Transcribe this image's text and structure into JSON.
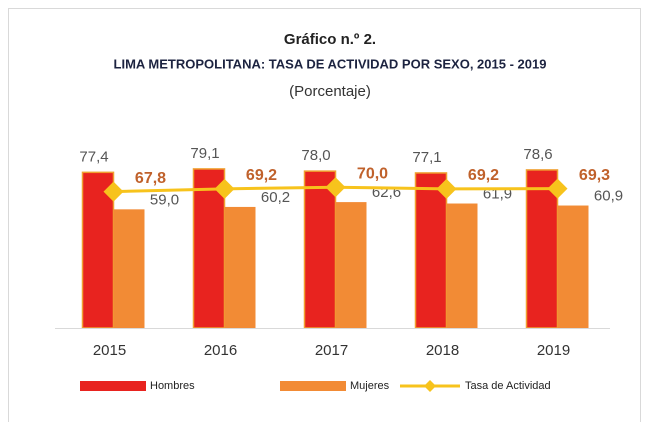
{
  "chart_data": {
    "type": "bar",
    "title": "Gráfico n.º 2.",
    "subtitle": "LIMA METROPOLITANA: TASA DE ACTIVIDAD POR SEXO, 2015 - 2019",
    "unit_note": "(Porcentaje)",
    "categories": [
      "2015",
      "2016",
      "2017",
      "2018",
      "2019"
    ],
    "series": [
      {
        "name": "Hombres",
        "type": "bar",
        "color": "#e8231f",
        "values": [
          77.4,
          79.1,
          78.0,
          77.1,
          78.6
        ],
        "value_labels": [
          "77,4",
          "79,1",
          "78,0",
          "77,1",
          "78,6"
        ]
      },
      {
        "name": "Mujeres",
        "type": "bar",
        "color": "#f28b35",
        "values": [
          59.0,
          60.2,
          62.6,
          61.9,
          60.9
        ],
        "value_labels": [
          "59,0",
          "60,2",
          "62,6",
          "61,9",
          "60,9"
        ]
      },
      {
        "name": "Tasa de Actividad",
        "type": "line",
        "color": "#f7c31c",
        "values": [
          67.8,
          69.2,
          70.0,
          69.2,
          69.3
        ],
        "value_labels": [
          "67,8",
          "69,2",
          "70,0",
          "69,2",
          "69,3"
        ]
      }
    ],
    "ylim": [
      0,
      90
    ]
  }
}
